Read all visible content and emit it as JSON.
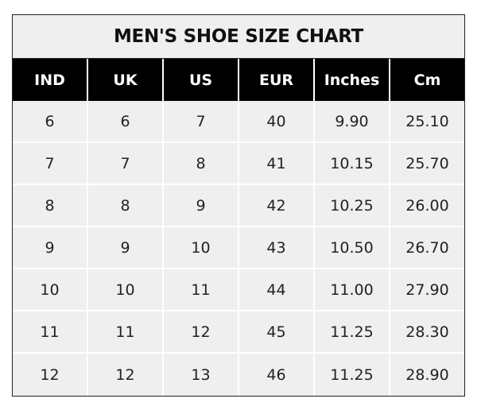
{
  "chart_data": {
    "type": "table",
    "title": "MEN'S SHOE SIZE CHART",
    "columns": [
      "IND",
      "UK",
      "US",
      "EUR",
      "Inches",
      "Cm"
    ],
    "rows": [
      [
        "6",
        "6",
        "7",
        "40",
        "9.90",
        "25.10"
      ],
      [
        "7",
        "7",
        "8",
        "41",
        "10.15",
        "25.70"
      ],
      [
        "8",
        "8",
        "9",
        "42",
        "10.25",
        "26.00"
      ],
      [
        "9",
        "9",
        "10",
        "43",
        "10.50",
        "26.70"
      ],
      [
        "10",
        "10",
        "11",
        "44",
        "11.00",
        "27.90"
      ],
      [
        "11",
        "11",
        "12",
        "45",
        "11.25",
        "28.30"
      ],
      [
        "12",
        "12",
        "13",
        "46",
        "11.25",
        "28.90"
      ]
    ],
    "colors": {
      "header_bg": "#000000",
      "header_text": "#ffffff",
      "cell_bg": "#efefef"
    }
  }
}
